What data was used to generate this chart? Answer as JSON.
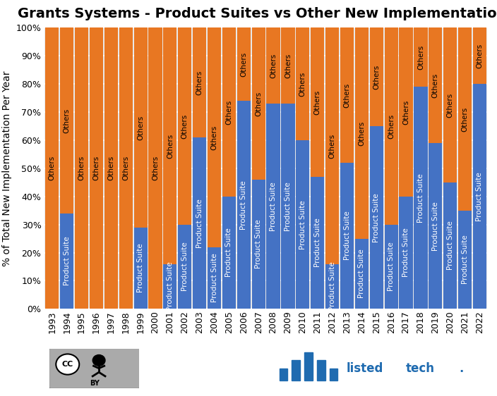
{
  "title": "Grants Systems - Product Suites vs Other New Implementations",
  "ylabel": "% of Total New Implementation Per Year",
  "years": [
    1993,
    1994,
    1995,
    1996,
    1997,
    1998,
    1999,
    2000,
    2001,
    2002,
    2003,
    2004,
    2005,
    2006,
    2007,
    2008,
    2009,
    2010,
    2011,
    2012,
    2013,
    2014,
    2015,
    2016,
    2017,
    2018,
    2019,
    2020,
    2021,
    2022
  ],
  "product_suite_pct": [
    0,
    34,
    0,
    0,
    0,
    0,
    29,
    0,
    16,
    30,
    61,
    22,
    40,
    74,
    46,
    73,
    73,
    60,
    47,
    16,
    52,
    25,
    65,
    30,
    40,
    79,
    59,
    45,
    35,
    80
  ],
  "color_suite": "#4472C4",
  "color_others": "#E87722",
  "plot_bg": "#E8E8E8",
  "fig_bg": "#FFFFFF",
  "title_fontsize": 14,
  "ylabel_fontsize": 10,
  "tick_fontsize": 9,
  "bar_text_fontsize": 7.5
}
